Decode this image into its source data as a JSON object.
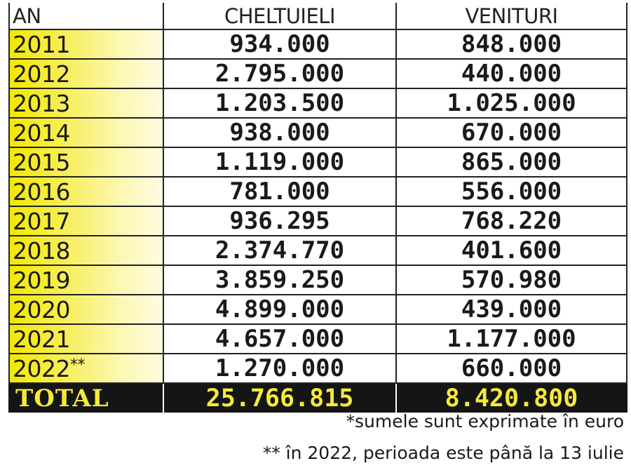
{
  "header": {
    "year": "AN",
    "expenses": "CHELTUIELI",
    "income": "VENITURI"
  },
  "rows": [
    {
      "year": "2011",
      "note": "",
      "expenses": "934.000",
      "income": "848.000"
    },
    {
      "year": "2012",
      "note": "",
      "expenses": "2.795.000",
      "income": "440.000"
    },
    {
      "year": "2013",
      "note": "",
      "expenses": "1.203.500",
      "income": "1.025.000"
    },
    {
      "year": "2014",
      "note": "",
      "expenses": "938.000",
      "income": "670.000"
    },
    {
      "year": "2015",
      "note": "",
      "expenses": "1.119.000",
      "income": "865.000"
    },
    {
      "year": "2016",
      "note": "",
      "expenses": "781.000",
      "income": "556.000"
    },
    {
      "year": "2017",
      "note": "",
      "expenses": "936.295",
      "income": "768.220"
    },
    {
      "year": "2018",
      "note": "",
      "expenses": "2.374.770",
      "income": "401.600"
    },
    {
      "year": "2019",
      "note": "",
      "expenses": "3.859.250",
      "income": "570.980"
    },
    {
      "year": "2020",
      "note": "",
      "expenses": "4.899.000",
      "income": "439.000"
    },
    {
      "year": "2021",
      "note": "",
      "expenses": "4.657.000",
      "income": "1.177.000"
    },
    {
      "year": "2022",
      "note": "**",
      "expenses": "1.270.000",
      "income": "660.000"
    }
  ],
  "total": {
    "label": "TOTAL",
    "expenses": "25.766.815",
    "income": "8.420.800"
  },
  "notes": {
    "currency": "*sumele sunt exprimate în euro",
    "period": "** în 2022, perioada este până la 13 iulie"
  },
  "colors": {
    "highlight": "#f2e800",
    "total_bg": "#151515",
    "total_text": "#f4e93a"
  }
}
